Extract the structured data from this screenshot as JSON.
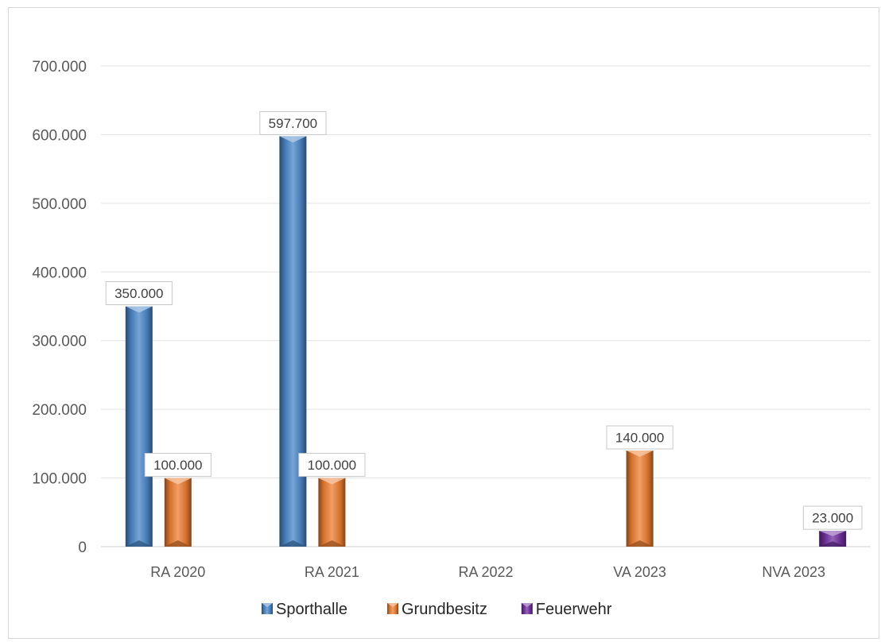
{
  "chart_data": {
    "type": "bar",
    "categories": [
      "RA 2020",
      "RA 2021",
      "RA 2022",
      "VA 2023",
      "NVA 2023"
    ],
    "series": [
      {
        "name": "Sporthalle",
        "values": [
          350000,
          597700,
          null,
          null,
          null
        ],
        "color": "#4a86c8"
      },
      {
        "name": "Grundbesitz",
        "values": [
          100000,
          100000,
          null,
          140000,
          null
        ],
        "color": "#ed7d31"
      },
      {
        "name": "Feuerwehr",
        "values": [
          null,
          null,
          null,
          null,
          23000
        ],
        "color": "#7030a0"
      }
    ],
    "data_labels": [
      [
        "350.000",
        "597.700",
        null,
        null,
        null
      ],
      [
        "100.000",
        "100.000",
        null,
        "140.000",
        null
      ],
      [
        null,
        null,
        null,
        null,
        "23.000"
      ]
    ],
    "ylim": [
      0,
      700000
    ],
    "yticks": [
      0,
      100000,
      200000,
      300000,
      400000,
      500000,
      600000,
      700000
    ],
    "ytick_labels": [
      "0",
      "100.000",
      "200.000",
      "300.000",
      "400.000",
      "500.000",
      "600.000",
      "700.000"
    ],
    "title": "",
    "xlabel": "",
    "ylabel": "",
    "grid": true,
    "legend_position": "bottom"
  }
}
